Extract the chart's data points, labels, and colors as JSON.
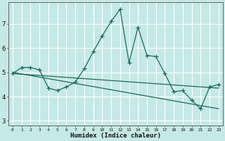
{
  "xlabel": "Humidex (Indice chaleur)",
  "background_color": "#c5e9e6",
  "grid_color": "#b0d8d4",
  "line_color": "#1a6b5a",
  "xlim": [
    -0.5,
    23.5
  ],
  "ylim": [
    2.8,
    7.9
  ],
  "yticks": [
    3,
    4,
    5,
    6,
    7
  ],
  "xticks": [
    0,
    1,
    2,
    3,
    4,
    5,
    6,
    7,
    8,
    9,
    10,
    11,
    12,
    13,
    14,
    15,
    16,
    17,
    18,
    19,
    20,
    21,
    22,
    23
  ],
  "x": [
    0,
    1,
    2,
    3,
    4,
    5,
    6,
    7,
    8,
    9,
    10,
    11,
    12,
    13,
    14,
    15,
    16,
    17,
    18,
    19,
    20,
    21,
    22,
    23
  ],
  "line1": [
    4.95,
    5.2,
    5.2,
    5.1,
    4.35,
    4.25,
    4.4,
    4.6,
    5.15,
    5.85,
    6.5,
    7.1,
    7.6,
    5.4,
    6.85,
    5.7,
    5.65,
    4.95,
    4.2,
    4.25,
    3.85,
    3.5,
    4.4,
    4.5
  ],
  "trend1_x": [
    0,
    23
  ],
  "trend1_y": [
    4.95,
    4.35
  ],
  "trend2_x": [
    0,
    23
  ],
  "trend2_y": [
    5.0,
    3.5
  ]
}
